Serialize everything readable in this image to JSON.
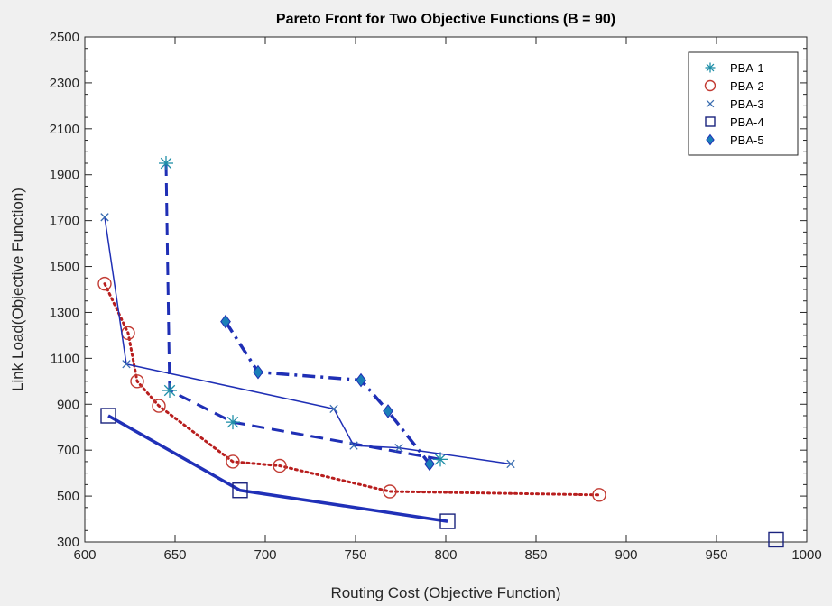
{
  "chart_data": {
    "type": "line",
    "title": "Pareto Front for Two Objective Functions  (B = 90)",
    "xlabel": "Routing Cost (Objective Function)",
    "ylabel": "Link Load(Objective Function)",
    "xlim": [
      600,
      1000
    ],
    "ylim": [
      300,
      2500
    ],
    "xticks": [
      600,
      650,
      700,
      750,
      800,
      850,
      900,
      950,
      1000
    ],
    "yticks": [
      300,
      500,
      700,
      900,
      1100,
      1300,
      1500,
      1700,
      1900,
      2100,
      2300,
      2500
    ],
    "grid": false,
    "legend_position": "top-right",
    "series": [
      {
        "name": "PBA-1",
        "marker": "asterisk",
        "color": "#1f8fa8",
        "line_color": "#1f2fb5",
        "line_style": "dashed",
        "line_width": 3,
        "x": [
          645,
          647,
          682,
          797
        ],
        "y": [
          1950,
          960,
          822,
          660
        ]
      },
      {
        "name": "PBA-2",
        "marker": "circle",
        "color": "#c23b33",
        "line_color": "#b81e1e",
        "line_style": "dotted",
        "line_width": 3,
        "x": [
          611,
          624,
          629,
          641,
          682,
          708,
          769,
          885
        ],
        "y": [
          1425,
          1210,
          1000,
          893,
          650,
          632,
          520,
          505
        ]
      },
      {
        "name": "PBA-3",
        "marker": "x",
        "color": "#3a6db0",
        "line_color": "#1f2fb5",
        "line_style": "solid",
        "line_width": 1.5,
        "x": [
          611,
          623,
          738,
          749,
          774,
          836
        ],
        "y": [
          1715,
          1075,
          880,
          720,
          710,
          640
        ]
      },
      {
        "name": "PBA-4",
        "marker": "square",
        "color": "#1a237e",
        "line_color": "#2030b8",
        "line_style": "solid",
        "line_width": 3.5,
        "x": [
          613,
          686,
          801,
          983
        ],
        "y": [
          850,
          525,
          390,
          310
        ],
        "connected_points": 3
      },
      {
        "name": "PBA-5",
        "marker": "diamond",
        "color": "#1a7fb8",
        "line_color": "#1f2fb5",
        "line_style": "dashdot",
        "line_width": 3.5,
        "x": [
          678,
          696,
          753,
          768,
          791
        ],
        "y": [
          1260,
          1040,
          1005,
          870,
          640
        ]
      }
    ]
  }
}
